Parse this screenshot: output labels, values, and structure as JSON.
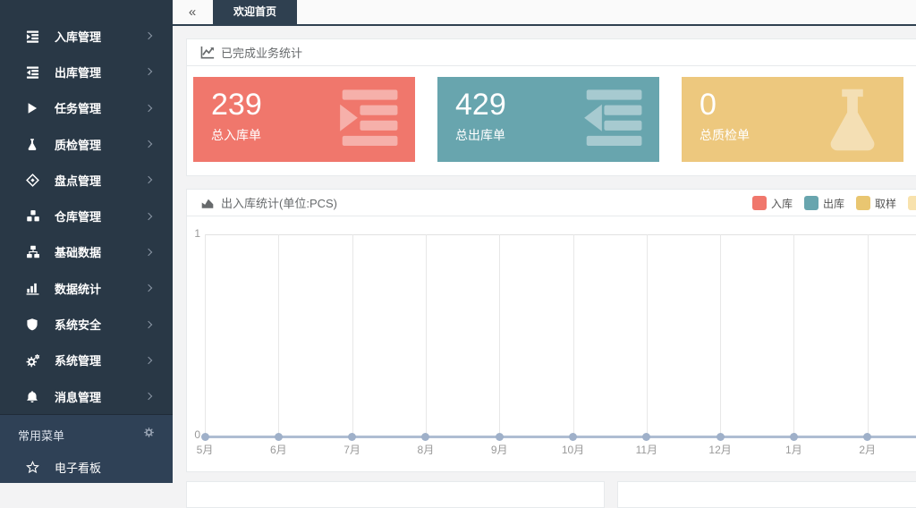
{
  "tabbar": {
    "collapse_glyph": "«",
    "tabs": [
      {
        "label": "欢迎首页",
        "active": true
      }
    ]
  },
  "sidebar": {
    "items": [
      {
        "label": "入库管理",
        "icon": "inbound-list-icon"
      },
      {
        "label": "出库管理",
        "icon": "outbound-list-icon"
      },
      {
        "label": "任务管理",
        "icon": "play-icon"
      },
      {
        "label": "质检管理",
        "icon": "flask-icon"
      },
      {
        "label": "盘点管理",
        "icon": "diamond-icon"
      },
      {
        "label": "仓库管理",
        "icon": "cubes-icon"
      },
      {
        "label": "基础数据",
        "icon": "sitemap-icon"
      },
      {
        "label": "数据统计",
        "icon": "bar-chart-icon"
      },
      {
        "label": "系统安全",
        "icon": "shield-icon"
      },
      {
        "label": "系统管理",
        "icon": "cogs-icon"
      },
      {
        "label": "消息管理",
        "icon": "bell-icon"
      }
    ],
    "common_section": {
      "title": "常用菜单",
      "gear_icon": "gear-icon",
      "items": [
        {
          "label": "电子看板",
          "icon": "star-icon"
        }
      ]
    }
  },
  "stats_panel": {
    "title": "已完成业务统计",
    "icon": "line-chart-icon",
    "cards": [
      {
        "value": "239",
        "label": "总入库单",
        "color": "#f0776c",
        "icon": "inbound-doc-icon"
      },
      {
        "value": "429",
        "label": "总出库单",
        "color": "#68a5ae",
        "icon": "outbound-doc-icon"
      },
      {
        "value": "0",
        "label": "总质检单",
        "color": "#edc87e",
        "icon": "flask-doc-icon"
      }
    ]
  },
  "chart_panel": {
    "title": "出入库统计(单位:PCS)",
    "icon": "area-chart-icon",
    "legend": [
      {
        "label": "入库",
        "color": "#f0776c"
      },
      {
        "label": "出库",
        "color": "#68a5ae"
      },
      {
        "label": "取样",
        "color": "#e9c671"
      },
      {
        "label": "",
        "color": "#f8e2ad"
      }
    ]
  },
  "chart_data": {
    "type": "line",
    "title": "出入库统计(单位:PCS)",
    "categories": [
      "5月",
      "6月",
      "7月",
      "8月",
      "9月",
      "10月",
      "11月",
      "12月",
      "1月",
      "2月"
    ],
    "series": [
      {
        "name": "入库",
        "values": [
          0,
          0,
          0,
          0,
          0,
          0,
          0,
          0,
          0,
          0
        ]
      },
      {
        "name": "出库",
        "values": [
          0,
          0,
          0,
          0,
          0,
          0,
          0,
          0,
          0,
          0
        ]
      },
      {
        "name": "取样",
        "values": [
          0,
          0,
          0,
          0,
          0,
          0,
          0,
          0,
          0,
          0
        ]
      }
    ],
    "xlabel": "",
    "ylabel": "",
    "ylim": [
      0,
      1
    ],
    "yticks": [
      "1",
      "0"
    ],
    "grid": true,
    "legend_position": "top-right",
    "line_color": "#aebdd2",
    "grid_color": "#e7e7e7",
    "axis_label_color": "#999999"
  },
  "colors": {
    "sidebar_bg": "#293846",
    "sidebar_section_bg": "#2f4156",
    "accent_dark": "#2f4050",
    "content_bg": "#f3f3f4",
    "panel_border": "#e7eaec",
    "header_text": "#676a6c"
  }
}
